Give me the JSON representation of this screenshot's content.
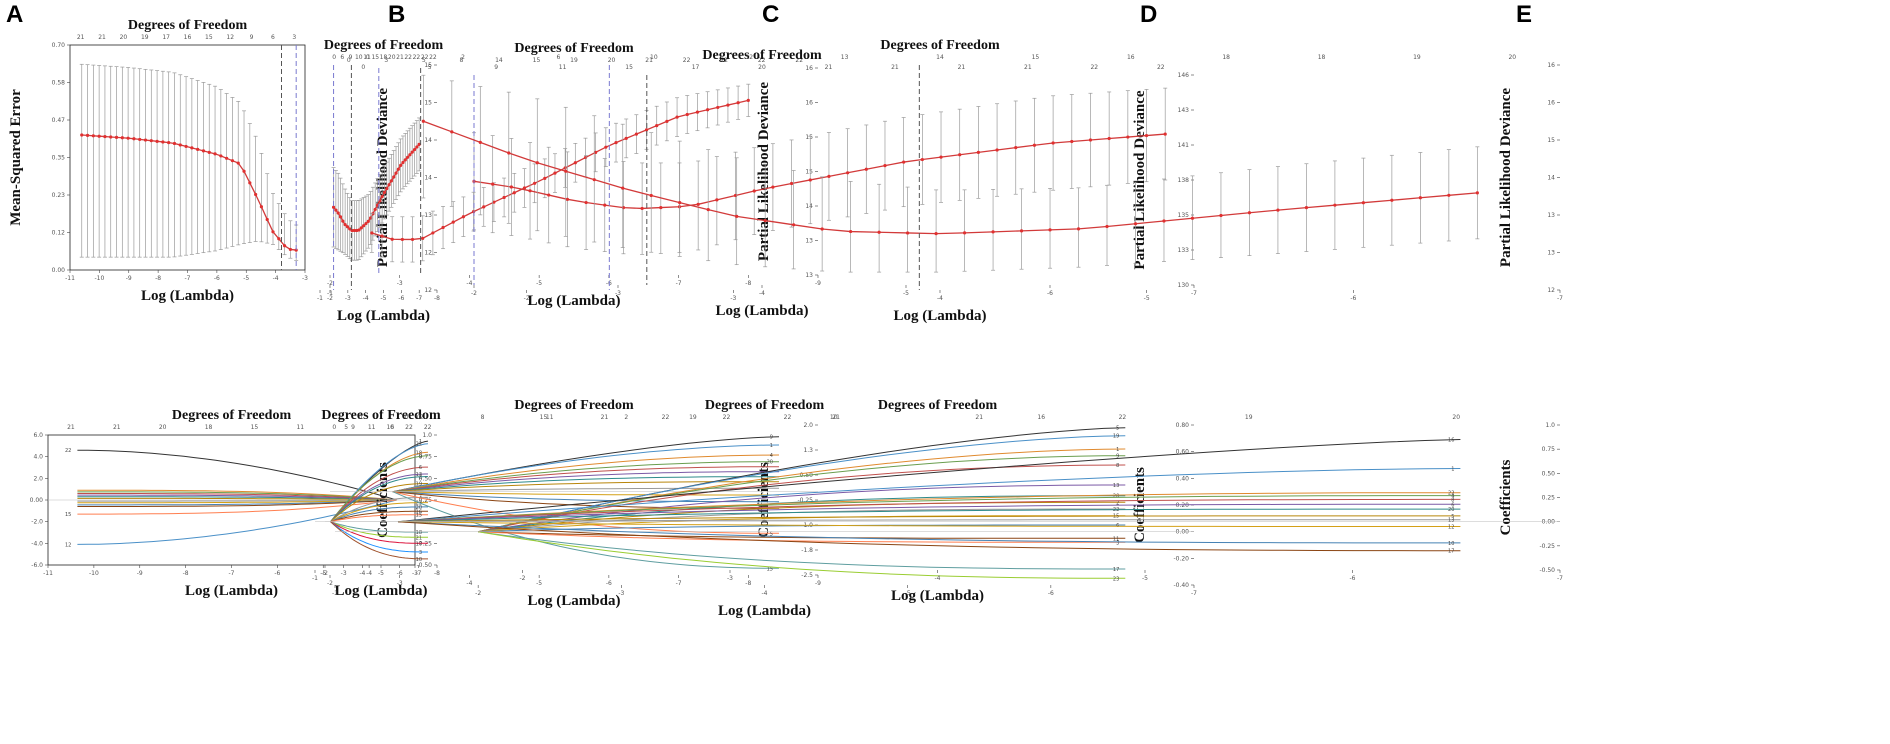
{
  "figure": {
    "panel_letters": [
      "A",
      "B",
      "C",
      "D",
      "E"
    ]
  },
  "chart_data": [
    {
      "id": "A-cv",
      "type": "line",
      "panel": "A",
      "position": "top",
      "title": "Degrees of Freedom",
      "xlabel": "Log (Lambda)",
      "ylabel": "Mean-Squared Error",
      "xlim": [
        -11,
        -3
      ],
      "ylim": [
        0.0,
        0.7
      ],
      "x_ticks": [
        -11,
        -10,
        -9,
        -8,
        -7,
        -6,
        -5,
        -4,
        -3
      ],
      "dof_ticks": [
        "21",
        "21",
        "20",
        "19",
        "17",
        "16",
        "15",
        "12",
        "9",
        "6",
        "3"
      ],
      "cv_curve": {
        "x": [
          -10.6,
          -9,
          -7.5,
          -6,
          -5.2,
          -4.6,
          -4.1,
          -3.6,
          -3.3
        ],
        "mean": [
          0.42,
          0.41,
          0.395,
          0.36,
          0.33,
          0.22,
          0.12,
          0.065,
          0.062
        ],
        "upper": [
          0.64,
          0.63,
          0.615,
          0.57,
          0.52,
          0.4,
          0.24,
          0.16,
          0.14
        ],
        "lower": [
          0.04,
          0.04,
          0.04,
          0.06,
          0.08,
          0.09,
          0.08,
          0.04,
          0.03
        ]
      },
      "vlines": [
        -3.8,
        -3.3
      ]
    },
    {
      "id": "B-cv",
      "type": "line",
      "panel": "B",
      "position": "top",
      "title": "Degrees of Freedom",
      "xlabel": "Log (Lambda)",
      "ylabel": "Partial Likelihood Deviance",
      "xlim": [
        -8,
        -2
      ],
      "ylim": [
        11.8,
        15.2
      ],
      "x_ticks": [
        -8,
        -7,
        -6,
        -5,
        -4,
        -3,
        -2
      ],
      "dof_ticks": [
        "22",
        "22",
        "22",
        "22",
        "21",
        "20",
        "18",
        "15",
        "11",
        "10",
        "9",
        "6",
        "0"
      ],
      "cv_curve": {
        "x": [
          -7,
          -6,
          -5,
          -4.2,
          -3.6,
          -3.2,
          -2.8,
          -2.5,
          -2.2
        ],
        "mean": [
          14.0,
          13.7,
          13.25,
          12.85,
          12.7,
          12.7,
          12.8,
          12.95,
          13.05
        ],
        "upper": [
          14.4,
          14.1,
          13.65,
          13.25,
          13.15,
          13.15,
          13.35,
          13.55,
          13.65
        ],
        "lower": [
          13.6,
          13.3,
          12.85,
          12.45,
          12.25,
          12.25,
          12.35,
          12.4,
          12.45
        ]
      },
      "vlines": [
        -3.2,
        -2.2
      ]
    },
    {
      "id": "C-cv",
      "type": "line",
      "panel": "C",
      "position": "top",
      "title": "Degrees of Freedom",
      "xlabel": "Log (Lambda)",
      "ylabel": "Partial Likelihood Deviance",
      "xlim": [
        -9,
        -2
      ],
      "ylim": [
        12.9,
        16.1
      ],
      "x_ticks": [
        -9,
        -8,
        -7,
        -6,
        -5,
        -4,
        -3,
        -2
      ],
      "dof_ticks": [
        "22",
        "22",
        "22",
        "22",
        "21",
        "20",
        "19",
        "15",
        "14",
        "8",
        "5",
        "3",
        "0"
      ],
      "cv_curve": {
        "x": [
          -8,
          -7,
          -6,
          -5,
          -4,
          -3.3,
          -2.9,
          -2.6
        ],
        "mean": [
          15.6,
          15.35,
          14.9,
          14.35,
          13.85,
          13.45,
          13.45,
          13.55
        ],
        "upper": [
          15.85,
          15.65,
          15.2,
          14.65,
          14.15,
          13.8,
          13.8,
          13.85
        ],
        "lower": [
          15.35,
          15.05,
          14.6,
          14.05,
          13.55,
          13.1,
          13.1,
          13.25
        ]
      },
      "vlines": [
        -3.3,
        -2.7
      ]
    },
    {
      "id": "D-cv",
      "type": "line",
      "panel": "D",
      "position": "top",
      "title": "Degrees of Freedom",
      "xlabel": "Log (Lambda)",
      "ylabel": "Partial Likelihood Deviance",
      "xlim": [
        -7,
        -1
      ],
      "ylim": [
        130,
        146
      ],
      "x_ticks": [
        -7,
        -6,
        -5,
        -4,
        -3,
        -2,
        -1
      ],
      "dof_ticks": [
        "22",
        "22",
        "21",
        "21",
        "21",
        "21",
        "20",
        "17",
        "15",
        "11",
        "9",
        "5",
        "0"
      ],
      "cv_curve": {
        "x": [
          -6.8,
          -6,
          -5,
          -4,
          -3.5,
          -3.1,
          -2.7,
          -2.3,
          -2
        ],
        "mean": [
          141.5,
          140.8,
          139.4,
          137.3,
          136.0,
          135.8,
          136.4,
          137.4,
          137.9
        ],
        "upper": [
          145.0,
          144.4,
          142.8,
          140.6,
          139.3,
          139.3,
          140.0,
          141.1,
          141.6
        ],
        "lower": [
          138.0,
          137.2,
          136.0,
          134.0,
          132.5,
          132.3,
          132.8,
          133.7,
          134.2
        ]
      },
      "vlines": [
        -3.2,
        -2
      ]
    },
    {
      "id": "E-cv",
      "type": "line",
      "panel": "E",
      "position": "top",
      "title": "Degrees of Freedom",
      "xlabel": "Log (Lambda)",
      "ylabel": "Partial Likelihood Deviance",
      "xlim": [
        -7,
        -1
      ],
      "ylim": [
        12.0,
        16.4
      ],
      "x_ticks": [
        -7,
        -6,
        -5,
        -4,
        -3,
        -2,
        -1
      ],
      "dof_ticks": [
        "20",
        "19",
        "18",
        "18",
        "16",
        "15",
        "14",
        "13",
        "12",
        "10",
        "6",
        "2",
        "0"
      ],
      "cv_curve": {
        "x": [
          -6.6,
          -5.6,
          -4.7,
          -4,
          -3.5,
          -3,
          -2.5,
          -2,
          -1.5
        ],
        "mean": [
          13.9,
          13.55,
          13.2,
          13.1,
          13.15,
          13.45,
          13.95,
          14.55,
          15.3
        ],
        "upper": [
          14.8,
          14.4,
          14.0,
          13.95,
          14.15,
          14.6,
          15.2,
          15.8,
          16.2
        ],
        "lower": [
          13.0,
          12.7,
          12.45,
          12.35,
          12.35,
          12.5,
          12.8,
          13.2,
          13.8
        ]
      },
      "vlines": [
        -3.9,
        -2.4
      ]
    },
    {
      "id": "A-coef",
      "type": "line",
      "panel": "A",
      "position": "bottom",
      "title": "Degrees of Freedom",
      "xlabel": "Log (Lambda)",
      "ylabel": "Coefficients",
      "xlim": [
        -11,
        -3
      ],
      "ylim": [
        -6,
        6
      ],
      "x_ticks": [
        -11,
        -10,
        -9,
        -8,
        -7,
        -6,
        -5,
        -4,
        -3
      ],
      "dof_ticks": [
        "21",
        "21",
        "20",
        "18",
        "15",
        "11",
        "5",
        "0"
      ],
      "x_end": -3.4,
      "paths": [
        {
          "label": "22",
          "start": 4.6,
          "shrink": 0.7
        },
        {
          "label": "12",
          "start": -4.1,
          "shrink": 0.7
        },
        {
          "label": "",
          "start": 0.9,
          "shrink": 0.3
        },
        {
          "label": "",
          "start": 0.75,
          "shrink": 0.3
        },
        {
          "label": "",
          "start": 0.6,
          "shrink": 0.3
        },
        {
          "label": "",
          "start": 0.45,
          "shrink": 0.3
        },
        {
          "label": "",
          "start": 0.3,
          "shrink": 0.3
        },
        {
          "label": "",
          "start": 0.15,
          "shrink": 0.3
        },
        {
          "label": "",
          "start": -0.1,
          "shrink": 0.3
        },
        {
          "label": "",
          "start": -0.25,
          "shrink": 0.3
        },
        {
          "label": "",
          "start": -0.45,
          "shrink": 0.3
        },
        {
          "label": "",
          "start": -0.6,
          "shrink": 0.3
        },
        {
          "label": "15",
          "start": -1.3,
          "shrink": 0.4
        }
      ]
    },
    {
      "id": "B-coef",
      "type": "line",
      "panel": "B",
      "position": "bottom",
      "title": "Degrees of Freedom",
      "xlabel": "Log (Lambda)",
      "ylabel": "Coefficients",
      "xlim": [
        -8,
        -2
      ],
      "ylim": [
        -0.5,
        1.0
      ],
      "x_ticks": [
        -8,
        -7,
        -6,
        -5,
        -4,
        -3,
        -2
      ],
      "dof_ticks": [
        "22",
        "22",
        "16",
        "11",
        "9",
        "0"
      ],
      "x_end": -2.3,
      "paths": [
        {
          "label": "1",
          "start": 0.93,
          "shrink": 0.85
        },
        {
          "label": "22",
          "start": 0.9,
          "shrink": 0.8
        },
        {
          "label": "18",
          "start": 0.8,
          "shrink": 0.75
        },
        {
          "label": "9",
          "start": 0.76,
          "shrink": 0.7
        },
        {
          "label": "6",
          "start": 0.63,
          "shrink": 0.65
        },
        {
          "label": "13",
          "start": 0.55,
          "shrink": 0.6
        },
        {
          "label": "2",
          "start": 0.52,
          "shrink": 0.6
        },
        {
          "label": "19",
          "start": 0.44,
          "shrink": 0.55
        },
        {
          "label": "4",
          "start": 0.28,
          "shrink": 0.5
        },
        {
          "label": "23",
          "start": 0.22,
          "shrink": 0.45
        },
        {
          "label": "20",
          "start": 0.17,
          "shrink": 0.4
        },
        {
          "label": "16",
          "start": 0.12,
          "shrink": 0.35
        },
        {
          "label": "15",
          "start": 0.08,
          "shrink": 0.3
        },
        {
          "label": "18",
          "start": -0.12,
          "shrink": 0.3
        },
        {
          "label": "21",
          "start": -0.18,
          "shrink": 0.35
        },
        {
          "label": "17",
          "start": -0.25,
          "shrink": 0.4
        },
        {
          "label": "3",
          "start": -0.35,
          "shrink": 0.45
        },
        {
          "label": "10",
          "start": -0.43,
          "shrink": 0.5
        }
      ]
    },
    {
      "id": "C-coef",
      "type": "line",
      "panel": "C",
      "position": "bottom",
      "title": "Degrees of Freedom",
      "xlabel": "Log (Lambda)",
      "ylabel": "Coefficients",
      "xlim": [
        -9,
        -2
      ],
      "ylim": [
        -2.5,
        2.0
      ],
      "x_ticks": [
        -9,
        -8,
        -7,
        -6,
        -5,
        -4,
        -3,
        -2
      ],
      "dof_ticks": [
        "22",
        "22",
        "22",
        "21",
        "15",
        "8",
        "2",
        "0"
      ],
      "x_end": -2.9,
      "paths": [
        {
          "label": "9",
          "start": 1.65,
          "shrink": 0.85
        },
        {
          "label": "1",
          "start": 1.4,
          "shrink": 0.75
        },
        {
          "label": "4",
          "start": 1.1,
          "shrink": 0.7
        },
        {
          "label": "20",
          "start": 0.9,
          "shrink": 0.65
        },
        {
          "label": "",
          "start": 0.75,
          "shrink": 0.6
        },
        {
          "label": "",
          "start": 0.6,
          "shrink": 0.55
        },
        {
          "label": "",
          "start": 0.45,
          "shrink": 0.5
        },
        {
          "label": "",
          "start": 0.3,
          "shrink": 0.45
        },
        {
          "label": "",
          "start": 0.1,
          "shrink": 0.4
        },
        {
          "label": "",
          "start": -0.1,
          "shrink": 0.4
        },
        {
          "label": "",
          "start": -0.3,
          "shrink": 0.45
        },
        {
          "label": "",
          "start": -0.5,
          "shrink": 0.5
        },
        {
          "label": "5",
          "start": -1.25,
          "shrink": 0.6
        },
        {
          "label": "15",
          "start": -2.3,
          "shrink": 0.6
        }
      ]
    },
    {
      "id": "D-coef",
      "type": "line",
      "panel": "D",
      "position": "bottom",
      "title": "Degrees of Freedom",
      "xlabel": "Log (Lambda)",
      "ylabel": "Coefficients",
      "xlim": [
        -7,
        -1
      ],
      "ylim": [
        -0.4,
        0.8
      ],
      "x_ticks": [
        -7,
        -6,
        -5,
        -4,
        -3,
        -2,
        -1
      ],
      "dof_ticks": [
        "22",
        "21",
        "21",
        "19",
        "11",
        "0"
      ],
      "x_end": -2.0,
      "paths": [
        {
          "label": "5",
          "start": 0.78,
          "shrink": 0.85
        },
        {
          "label": "19",
          "start": 0.72,
          "shrink": 0.8
        },
        {
          "label": "1",
          "start": 0.62,
          "shrink": 0.75
        },
        {
          "label": "9",
          "start": 0.57,
          "shrink": 0.7
        },
        {
          "label": "8",
          "start": 0.5,
          "shrink": 0.65
        },
        {
          "label": "13",
          "start": 0.35,
          "shrink": 0.6
        },
        {
          "label": "20",
          "start": 0.27,
          "shrink": 0.5
        },
        {
          "label": "2",
          "start": 0.22,
          "shrink": 0.45
        },
        {
          "label": "22",
          "start": 0.17,
          "shrink": 0.4
        },
        {
          "label": "15",
          "start": 0.12,
          "shrink": 0.35
        },
        {
          "label": "6",
          "start": 0.05,
          "shrink": 0.3
        },
        {
          "label": "11",
          "start": -0.05,
          "shrink": 0.3
        },
        {
          "label": "3",
          "start": -0.08,
          "shrink": 0.35
        },
        {
          "label": "17",
          "start": -0.28,
          "shrink": 0.5
        },
        {
          "label": "23",
          "start": -0.35,
          "shrink": 0.55
        }
      ]
    },
    {
      "id": "E-coef",
      "type": "line",
      "panel": "E",
      "position": "bottom",
      "title": "Degrees of Freedom",
      "xlabel": "Log (Lambda)",
      "ylabel": "Coefficients",
      "xlim": [
        -7,
        -1
      ],
      "ylim": [
        -0.5,
        1.0
      ],
      "x_ticks": [
        -7,
        -6,
        -5,
        -4,
        -3,
        -2,
        -1
      ],
      "dof_ticks": [
        "20",
        "19",
        "16",
        "10",
        "2",
        "0"
      ],
      "x_end": -1.4,
      "paths": [
        {
          "label": "16",
          "start": 0.85,
          "shrink": 0.9
        },
        {
          "label": "1",
          "start": 0.55,
          "shrink": 0.8
        },
        {
          "label": "22",
          "start": 0.3,
          "shrink": 0.6
        },
        {
          "label": "4",
          "start": 0.27,
          "shrink": 0.55
        },
        {
          "label": "8",
          "start": 0.23,
          "shrink": 0.5
        },
        {
          "label": "6",
          "start": 0.18,
          "shrink": 0.45
        },
        {
          "label": "20",
          "start": 0.13,
          "shrink": 0.4
        },
        {
          "label": "5",
          "start": 0.06,
          "shrink": 0.35
        },
        {
          "label": "13",
          "start": 0.02,
          "shrink": 0.3
        },
        {
          "label": "12",
          "start": -0.05,
          "shrink": 0.35
        },
        {
          "label": "10",
          "start": -0.22,
          "shrink": 0.45
        },
        {
          "label": "17",
          "start": -0.3,
          "shrink": 0.5
        }
      ]
    }
  ]
}
